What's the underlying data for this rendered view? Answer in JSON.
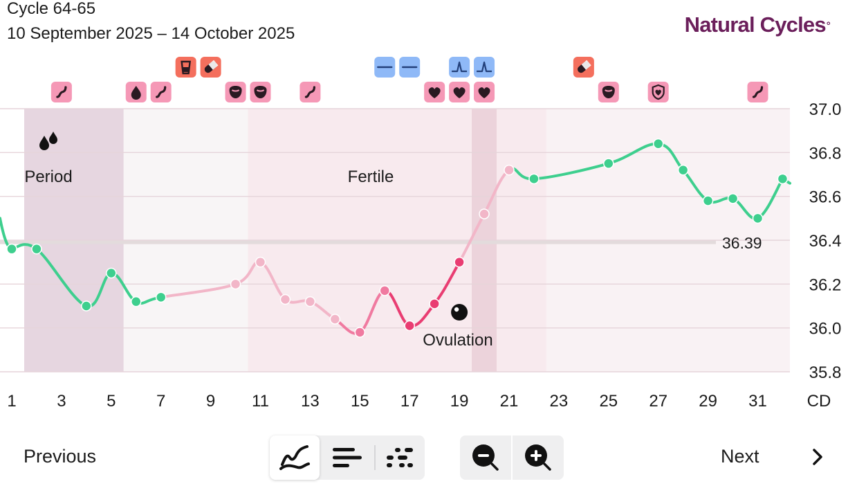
{
  "header": {
    "cycle_title": "Cycle 64-65",
    "date_range": "10 September 2025 – 14 October 2025",
    "logo_text": "Natural Cycles",
    "logo_mark": "°"
  },
  "chart_data": {
    "type": "line",
    "ylim": [
      35.8,
      37.0
    ],
    "y_ticks": [
      "37.0",
      "36.8",
      "36.6",
      "36.4",
      "36.2",
      "36.0",
      "35.8"
    ],
    "x_ticks": [
      1,
      3,
      5,
      7,
      9,
      11,
      13,
      15,
      17,
      19,
      21,
      23,
      25,
      27,
      29,
      31
    ],
    "x_unit_label": "CD",
    "cover_line": {
      "value": 36.39,
      "label": "36.39"
    },
    "series": [
      {
        "values": [
          {
            "cd": 1,
            "temp": 36.36
          },
          {
            "cd": 2,
            "temp": 36.36
          },
          {
            "cd": 4,
            "temp": 36.1
          },
          {
            "cd": 5,
            "temp": 36.25
          },
          {
            "cd": 6,
            "temp": 36.12
          },
          {
            "cd": 7,
            "temp": 36.14
          },
          {
            "cd": 10,
            "temp": 36.2
          },
          {
            "cd": 11,
            "temp": 36.3
          },
          {
            "cd": 12,
            "temp": 36.13
          },
          {
            "cd": 13,
            "temp": 36.12
          },
          {
            "cd": 14,
            "temp": 36.04
          },
          {
            "cd": 15,
            "temp": 35.98
          },
          {
            "cd": 16,
            "temp": 36.17
          },
          {
            "cd": 17,
            "temp": 36.01
          },
          {
            "cd": 18,
            "temp": 36.11
          },
          {
            "cd": 19,
            "temp": 36.3
          },
          {
            "cd": 20,
            "temp": 36.52
          },
          {
            "cd": 21,
            "temp": 36.72
          },
          {
            "cd": 22,
            "temp": 36.68
          },
          {
            "cd": 25,
            "temp": 36.75
          },
          {
            "cd": 27,
            "temp": 36.84
          },
          {
            "cd": 28,
            "temp": 36.72
          },
          {
            "cd": 29,
            "temp": 36.58
          },
          {
            "cd": 30,
            "temp": 36.59
          },
          {
            "cd": 31,
            "temp": 36.5
          },
          {
            "cd": 32,
            "temp": 36.68
          }
        ]
      }
    ],
    "bands": [
      {
        "label": "Period",
        "kind": "period",
        "from_cd": 0,
        "to_cd": 4
      },
      {
        "label": "",
        "kind": "follicular",
        "from_cd": 4,
        "to_cd": 9
      },
      {
        "label": "Fertile",
        "kind": "fertile",
        "from_cd": 9,
        "to_cd": 21
      },
      {
        "label": "Ovulation",
        "kind": "ovulation",
        "from_cd": 18,
        "to_cd": 19
      },
      {
        "label": "",
        "kind": "luteal",
        "from_cd": 21,
        "to_cd": 32
      }
    ],
    "colors": {
      "not_fertile": "#3ecf8e",
      "fertile_light": "#f2b6c8",
      "fertile_mid": "#f07aa0",
      "fertile_peak": "#e93d72",
      "period_band": "#e6d6e0",
      "follicular_band": "#f8f5f6",
      "fertile_band": "#f8eaee",
      "ovulation_band": "#ecd3db",
      "luteal_band": "#f9f2f4",
      "cover_line": "#e3dbdc",
      "grid": "#e6d4da"
    },
    "markers_top": [
      {
        "cd": 7,
        "icon": "test-cup-icon",
        "color": "#f46f5d"
      },
      {
        "cd": 8,
        "icon": "pill-icon",
        "color": "#f46f5d"
      },
      {
        "cd": 15,
        "icon": "lh-negative-icon",
        "color": "#8fb9f7"
      },
      {
        "cd": 16,
        "icon": "lh-negative-icon",
        "color": "#8fb9f7"
      },
      {
        "cd": 18,
        "icon": "lh-positive-icon",
        "color": "#8fb9f7"
      },
      {
        "cd": 19,
        "icon": "lh-positive-icon",
        "color": "#8fb9f7"
      },
      {
        "cd": 23,
        "icon": "pill-icon",
        "color": "#f46f5d"
      }
    ],
    "markers_bottom": [
      {
        "cd": 2,
        "icon": "sex-icon"
      },
      {
        "cd": 5,
        "icon": "drop-icon"
      },
      {
        "cd": 6,
        "icon": "sex-icon"
      },
      {
        "cd": 9,
        "icon": "mood-icon"
      },
      {
        "cd": 10,
        "icon": "mood-icon"
      },
      {
        "cd": 12,
        "icon": "sex-icon"
      },
      {
        "cd": 17,
        "icon": "heart-icon"
      },
      {
        "cd": 18,
        "icon": "heart-icon"
      },
      {
        "cd": 19,
        "icon": "heart-icon"
      },
      {
        "cd": 24,
        "icon": "mood-icon"
      },
      {
        "cd": 26,
        "icon": "shield-heart-icon"
      },
      {
        "cd": 30,
        "icon": "sex-icon"
      }
    ]
  },
  "controls": {
    "previous_label": "Previous",
    "next_label": "Next",
    "view_buttons": [
      {
        "icon": "line-graph-icon",
        "active": true
      },
      {
        "icon": "bar-list-icon",
        "active": false
      },
      {
        "icon": "dots-grid-icon",
        "active": false
      }
    ],
    "zoom_buttons": [
      {
        "icon": "zoom-out-icon"
      },
      {
        "icon": "zoom-in-icon"
      }
    ]
  }
}
